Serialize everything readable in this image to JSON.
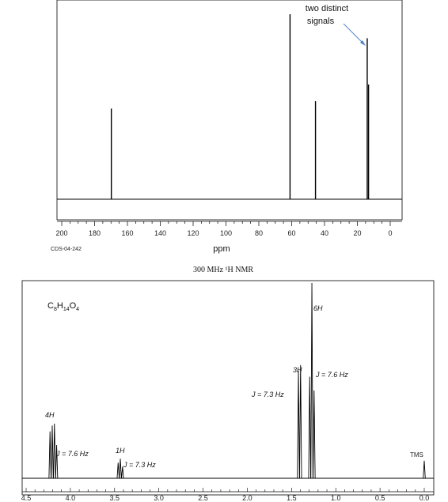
{
  "chart_data": [
    {
      "type": "line",
      "subtype": "13C NMR stick spectrum",
      "x_unit_label": "ppm",
      "code_label": "CDS-04-242",
      "xlim": [
        200,
        0
      ],
      "x_ticks": [
        200,
        180,
        160,
        140,
        120,
        100,
        80,
        60,
        40,
        20,
        0
      ],
      "peaks": [
        {
          "ppm": 169.8,
          "height": 0.49
        },
        {
          "ppm": 61.0,
          "height": 1.0
        },
        {
          "ppm": 45.5,
          "height": 0.53
        },
        {
          "ppm": 14.0,
          "height": 0.87
        },
        {
          "ppm": 13.2,
          "height": 0.62
        }
      ],
      "annotations": [
        {
          "text_line1": "two distinct",
          "text_line2": "signals"
        }
      ]
    },
    {
      "type": "line",
      "subtype": "1H NMR spectrum",
      "title": "300 MHz ¹H NMR",
      "formula": {
        "c": "C",
        "c_sub": "8",
        "h": "H",
        "h_sub": "14",
        "o": "O",
        "o_sub": "4"
      },
      "xlim": [
        4.5,
        0.0
      ],
      "x_ticks": [
        "4.5",
        "4.0",
        "3.5",
        "3.0",
        "2.5",
        "2.0",
        "1.5",
        "1.0",
        "0.5",
        "0.0"
      ],
      "peaks": [
        {
          "ppm": 4.23,
          "height": 0.24
        },
        {
          "ppm": 4.205,
          "height": 0.27
        },
        {
          "ppm": 4.18,
          "height": 0.28
        },
        {
          "ppm": 4.155,
          "height": 0.17
        },
        {
          "ppm": 3.46,
          "height": 0.08
        },
        {
          "ppm": 3.435,
          "height": 0.1
        },
        {
          "ppm": 3.41,
          "height": 0.06
        },
        {
          "ppm": 1.422,
          "height": 0.55
        },
        {
          "ppm": 1.398,
          "height": 0.58
        },
        {
          "ppm": 1.295,
          "height": 0.52
        },
        {
          "ppm": 1.27,
          "height": 1.0
        },
        {
          "ppm": 1.245,
          "height": 0.45
        },
        {
          "ppm": 0.0,
          "height": 0.09
        }
      ],
      "labels": {
        "h4": "4H",
        "j1": "J = 7.6 Hz",
        "h1": "1H",
        "j2": "J = 7.3 Hz",
        "j3": "J = 7.3 Hz",
        "h3": "3H",
        "h6": "6H",
        "j4": "J = 7.6 Hz",
        "tms": "TMS"
      }
    }
  ]
}
